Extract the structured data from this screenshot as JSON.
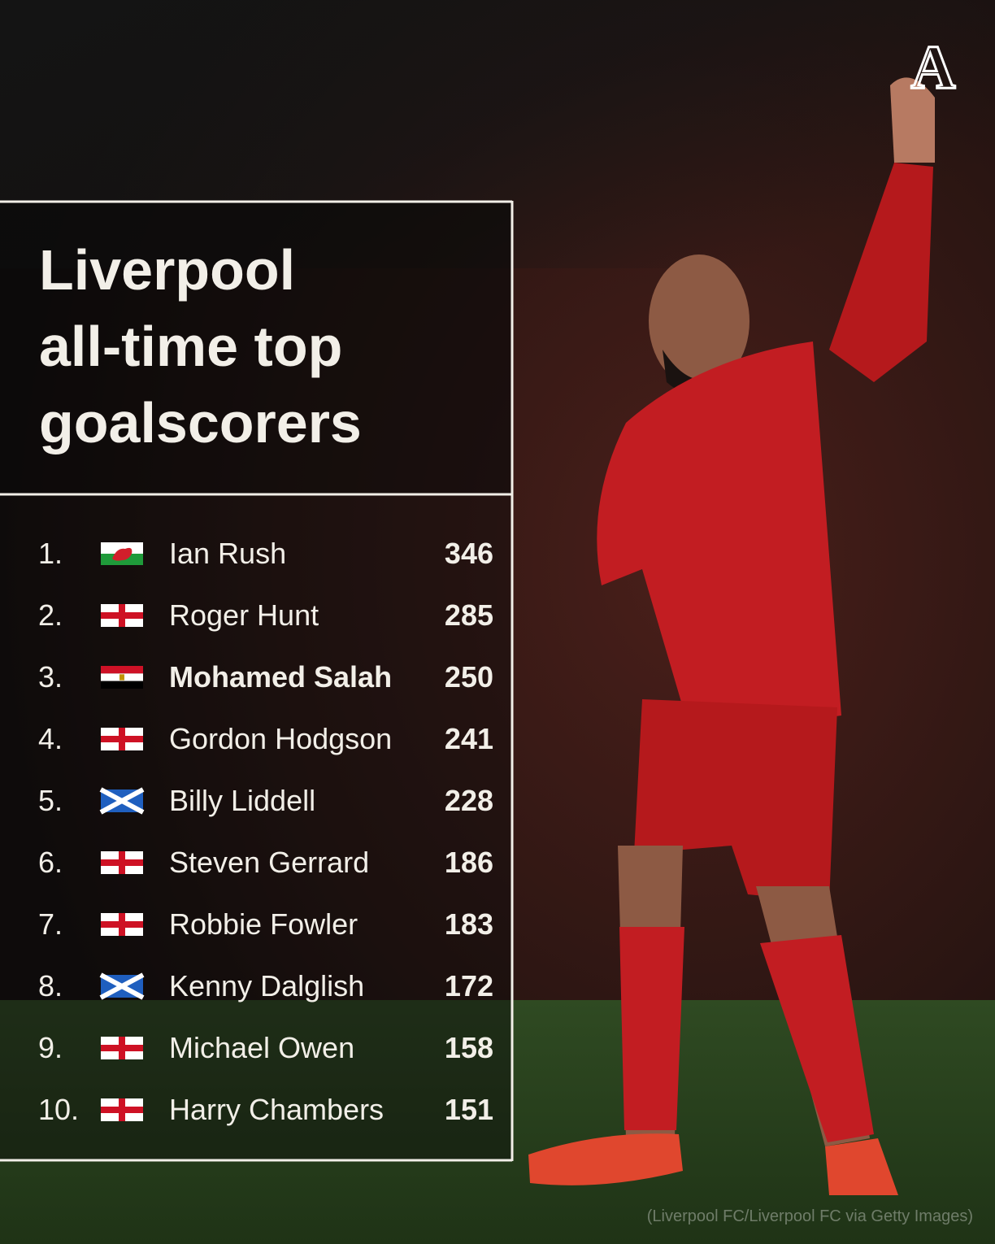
{
  "header": {
    "logo": "A",
    "title_lines": [
      "Liverpool",
      "all-time top",
      "goalscorers"
    ]
  },
  "table": {
    "rows": [
      [
        "1.",
        "Ian Rush",
        346
      ],
      [
        "2.",
        "Roger Hunt",
        285
      ],
      [
        "3.",
        "Mohamed Salah",
        250
      ],
      [
        "4.",
        "Gordon Hodgson",
        241
      ],
      [
        "5.",
        "Billy Liddell",
        228
      ],
      [
        "6.",
        "Steven Gerrard",
        186
      ],
      [
        "7.",
        "Robbie Fowler",
        183
      ],
      [
        "8.",
        "Kenny Dalglish",
        172
      ],
      [
        "9.",
        "Michael Owen",
        158
      ],
      [
        "10.",
        "Harry Chambers",
        151
      ]
    ]
  },
  "credit": "(Liverpool FC/Liverpool FC via Getty Images)"
}
